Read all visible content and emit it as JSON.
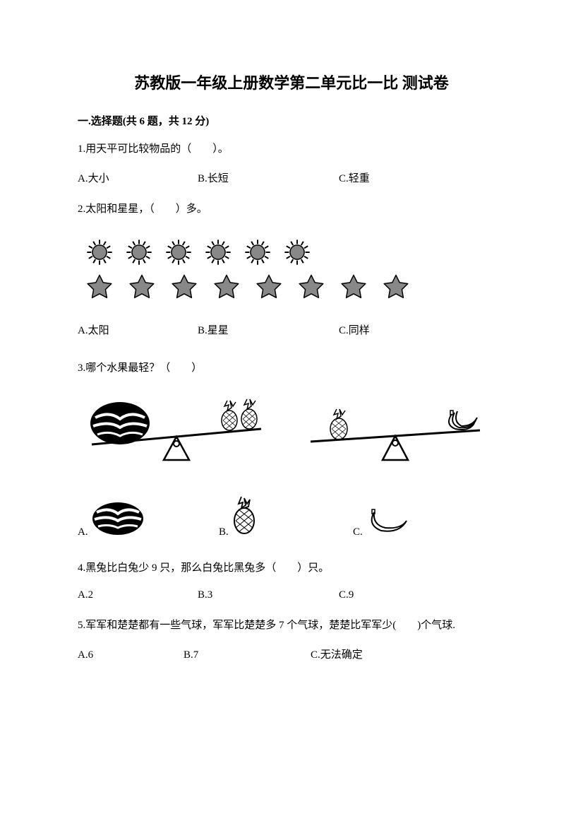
{
  "title": "苏教版一年级上册数学第二单元比一比 测试卷",
  "section1": {
    "header": "一.选择题(共 6 题，共 12 分)",
    "q1": {
      "text": "1.用天平可比较物品的（　　）。",
      "a": "A.大小",
      "b": "B.长短",
      "c": "C.轻重"
    },
    "q2": {
      "text": "2.太阳和星星，（　　）多。",
      "suns": 6,
      "stars": 8,
      "a": "A.太阳",
      "b": "B.星星",
      "c": "C.同样"
    },
    "q3": {
      "text": "3.哪个水果最轻？（　　）",
      "a": "A.",
      "b": "B.",
      "c": "C."
    },
    "q4": {
      "text": "4.黑兔比白兔少 9 只，那么白兔比黑兔多（　　）只。",
      "a": "A.2",
      "b": "B.3",
      "c": "C.9"
    },
    "q5": {
      "text": "5.军军和楚楚都有一些气球，军军比楚楚多 7 个气球，楚楚比军军少(　　)个气球.",
      "a": "A.6",
      "b": "B.7",
      "c": "C.无法确定"
    }
  },
  "colors": {
    "text": "#000000",
    "bg": "#ffffff",
    "iconFill": "#888888",
    "iconStroke": "#000000"
  },
  "icons": {
    "sunSize": 42,
    "starSize": 42
  }
}
